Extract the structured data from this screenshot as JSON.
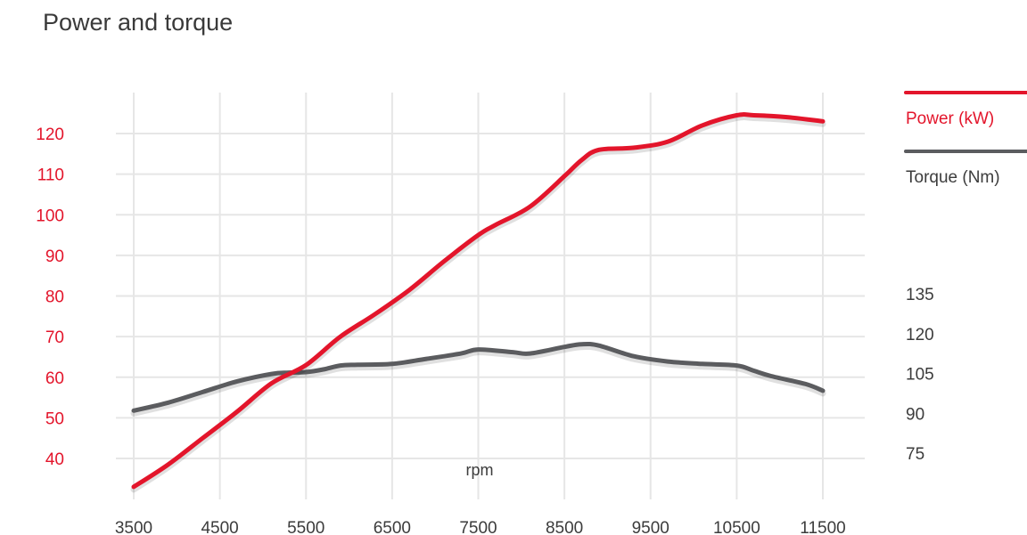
{
  "chart_data": {
    "type": "line",
    "title": "Power and torque",
    "xlabel": "rpm",
    "x_ticks": [
      3500,
      4500,
      5500,
      6500,
      7500,
      8500,
      9500,
      10500,
      11500
    ],
    "xlim": [
      3500,
      11500
    ],
    "y_left": {
      "ticks": [
        40,
        50,
        60,
        70,
        80,
        90,
        100,
        110,
        120
      ],
      "range": [
        40,
        120
      ]
    },
    "y_right": {
      "ticks": [
        75,
        90,
        105,
        120,
        135
      ],
      "range": [
        75,
        135
      ]
    },
    "grid": true,
    "legend_position": "top-right",
    "colors": {
      "power": "#e3152b",
      "torque": "#5b5c5f",
      "left_axis": "#e3152b",
      "right_axis": "#3c3c3c",
      "grid": "#e6e6e6"
    },
    "series": [
      {
        "name": "Power (kW)",
        "axis": "left",
        "x": [
          3500,
          3900,
          4300,
          4700,
          5100,
          5500,
          5900,
          6300,
          6700,
          7100,
          7500,
          7700,
          8100,
          8500,
          8700,
          8900,
          9300,
          9700,
          10100,
          10500,
          10700,
          11100,
          11500
        ],
        "y": [
          33,
          38.5,
          45,
          51.5,
          58.5,
          63,
          70,
          75.5,
          81.5,
          88.5,
          95,
          97.5,
          102,
          109.5,
          113.5,
          116,
          116.5,
          118,
          122,
          124.5,
          124.5,
          124,
          123
        ]
      },
      {
        "name": "Torque (Nm)",
        "axis": "right",
        "x": [
          3500,
          3900,
          4300,
          4700,
          5100,
          5300,
          5500,
          5700,
          5900,
          6100,
          6500,
          6900,
          7300,
          7500,
          7900,
          8100,
          8500,
          8700,
          8900,
          9300,
          9700,
          10100,
          10500,
          10700,
          10900,
          11300,
          11500
        ],
        "y": [
          91,
          94,
          98,
          102,
          104.8,
          105.3,
          105.5,
          106.5,
          108,
          108.3,
          108.6,
          110.5,
          112.5,
          114,
          113,
          112.5,
          115,
          116,
          115.5,
          111.5,
          109.5,
          108.6,
          108,
          106,
          104,
          101,
          98.5
        ]
      }
    ]
  }
}
